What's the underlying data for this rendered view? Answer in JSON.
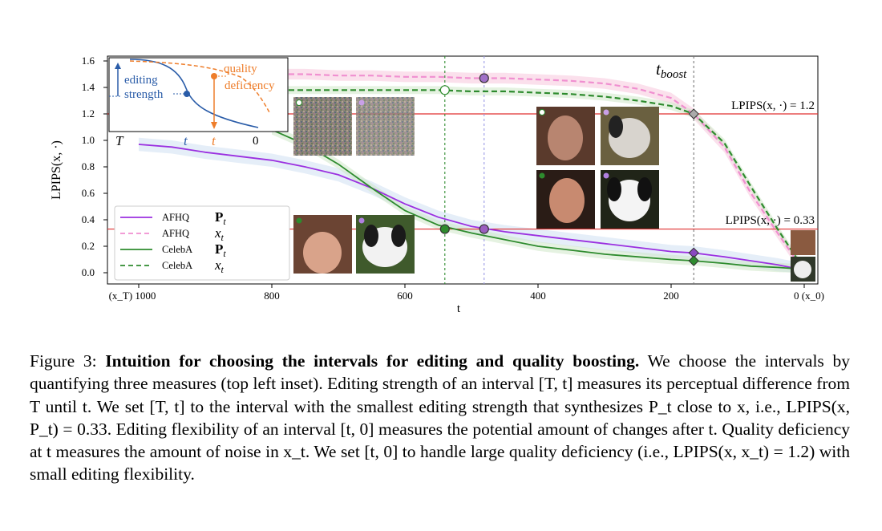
{
  "chart_data": {
    "type": "line",
    "title": "",
    "xlabel": "t",
    "ylabel": "LPIPS(x, ·)",
    "xlim": [
      1000,
      0
    ],
    "ylim": [
      0,
      1.6
    ],
    "x_ticks": [
      1000,
      800,
      600,
      400,
      200,
      0
    ],
    "x_tick_labels": [
      "(x_T) 1000",
      "800",
      "600",
      "400",
      "200",
      "0 (x_0)"
    ],
    "y_ticks": [
      0.0,
      0.2,
      0.4,
      0.6,
      0.8,
      1.0,
      1.2,
      1.4,
      1.6
    ],
    "y_tick_labels": [
      "0.0",
      "0.2",
      "0.4",
      "0.6",
      "0.8",
      "1.0",
      "1.2",
      "1.4",
      "1.6"
    ],
    "x": [
      1000,
      950,
      900,
      850,
      800,
      750,
      700,
      650,
      600,
      550,
      500,
      450,
      400,
      350,
      300,
      250,
      200,
      166,
      120,
      80,
      40,
      10,
      0
    ],
    "series": [
      {
        "name": "AFHQ P_t",
        "color": "#9b30e0",
        "dash": "solid",
        "values": [
          0.97,
          0.95,
          0.91,
          0.88,
          0.85,
          0.8,
          0.74,
          0.64,
          0.52,
          0.42,
          0.35,
          0.31,
          0.28,
          0.25,
          0.22,
          0.19,
          0.16,
          0.15,
          0.12,
          0.09,
          0.06,
          0.03,
          0.01
        ]
      },
      {
        "name": "AFHQ x_t",
        "color": "#f08fd0",
        "dash": "dashed",
        "values": [
          1.5,
          1.5,
          1.5,
          1.5,
          1.5,
          1.5,
          1.49,
          1.49,
          1.48,
          1.48,
          1.47,
          1.47,
          1.46,
          1.45,
          1.43,
          1.39,
          1.32,
          1.2,
          0.95,
          0.6,
          0.3,
          0.08,
          0.02
        ]
      },
      {
        "name": "CelebA P_t",
        "color": "#2e8b2e",
        "dash": "solid",
        "values": [
          null,
          null,
          null,
          null,
          1.08,
          0.97,
          0.82,
          0.64,
          0.47,
          0.36,
          0.3,
          0.25,
          0.2,
          0.17,
          0.14,
          0.12,
          0.1,
          0.09,
          0.07,
          0.05,
          0.04,
          0.03,
          0.01
        ]
      },
      {
        "name": "CelebA x_t",
        "color": "#2e8b2e",
        "dash": "dashed",
        "values": [
          1.38,
          1.38,
          1.38,
          1.38,
          1.38,
          1.38,
          1.38,
          1.38,
          1.38,
          1.38,
          1.37,
          1.37,
          1.36,
          1.35,
          1.33,
          1.3,
          1.26,
          1.2,
          0.98,
          0.65,
          0.33,
          0.1,
          0.02
        ]
      }
    ],
    "reference_lines": [
      {
        "y": 1.2,
        "label": "LPIPS(x, ·) = 1.2",
        "color": "#e03030"
      },
      {
        "y": 0.33,
        "label": "LPIPS(x, ·) = 0.33",
        "color": "#e03030"
      }
    ],
    "vertical_lines": [
      {
        "x": 540,
        "color": "#2e8b2e"
      },
      {
        "x": 481,
        "color": "#9a9ae6"
      },
      {
        "x": 166,
        "color": "#777777",
        "label": "t_boost"
      }
    ],
    "markers": [
      {
        "x": 540,
        "y": 0.33,
        "shape": "circle",
        "fill": "#2e8b2e"
      },
      {
        "x": 481,
        "y": 0.33,
        "shape": "circle",
        "fill": "#9b5fc0"
      },
      {
        "x": 540,
        "y": 1.38,
        "shape": "circle",
        "fill": "#ffffff",
        "stroke": "#2e8b2e"
      },
      {
        "x": 481,
        "y": 1.47,
        "shape": "circle",
        "fill": "#a070c8"
      },
      {
        "x": 166,
        "y": 1.2,
        "shape": "diamond",
        "fill": "#aaaaaa"
      },
      {
        "x": 166,
        "y": 0.15,
        "shape": "diamond",
        "fill": "#8a48c0"
      },
      {
        "x": 166,
        "y": 0.09,
        "shape": "diamond",
        "fill": "#2e8b2e"
      }
    ],
    "legend": {
      "placement": "lower-left",
      "entries": [
        {
          "dataset": "AFHQ",
          "symbol": "P_t"
        },
        {
          "dataset": "AFHQ",
          "symbol": "x_t"
        },
        {
          "dataset": "CelebA",
          "symbol": "P_t"
        },
        {
          "dataset": "CelebA",
          "symbol": "x_t"
        }
      ]
    },
    "grid": false,
    "inset": {
      "placement": "top-left",
      "labels": {
        "editing_strength": [
          "editing",
          "strength"
        ],
        "quality_deficiency": [
          "quality",
          "deficiency"
        ],
        "axis_T": "T",
        "axis_t_blue": "t",
        "axis_t_orange": "t",
        "axis_0": "0"
      }
    }
  },
  "labels": {
    "t_boost_main": "t",
    "t_boost_sub": "boost",
    "ref_high": "LPIPS(x, ·) = 1.2",
    "ref_low": "LPIPS(x, ·) = 0.33",
    "xlabel": "t",
    "ylabel": "LPIPS(x, ·)"
  },
  "caption": {
    "prefix": "Figure 3:",
    "bold": "Intuition for choosing the intervals for editing and quality boosting.",
    "body": "We choose the intervals by quantifying three measures (top left inset). Editing strength of an interval [T, t] measures its perceptual difference from T until t. We set [T, t] to the interval with the smallest editing strength that synthesizes P_t close to x, i.e., LPIPS(x, P_t) = 0.33. Editing flexibility of an interval [t, 0] measures the potential amount of changes after t. Quality deficiency at t measures the amount of noise in x_t. We set [t, 0] to handle large quality deficiency (i.e., LPIPS(x, x_t) = 1.2) with small editing flexibility."
  }
}
